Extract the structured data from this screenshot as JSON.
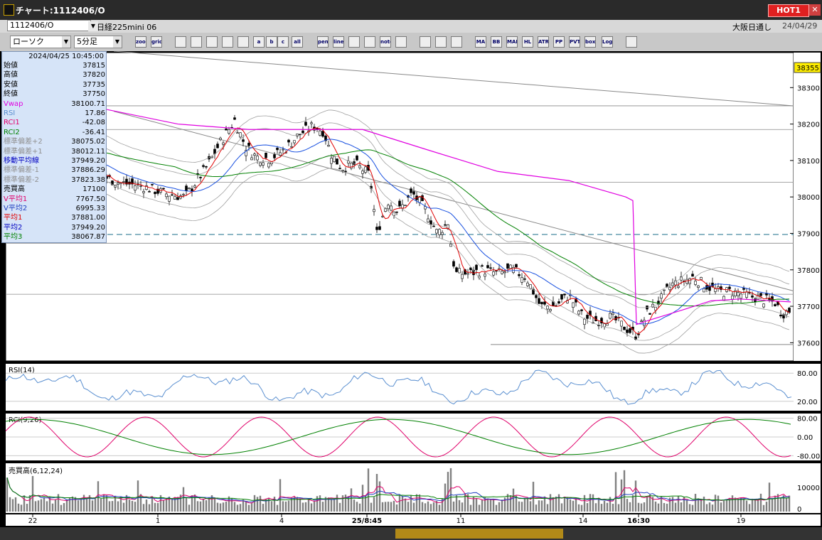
{
  "window": {
    "title": "チャート:1112406/O",
    "hot_label": "HOT1",
    "close_label": "✕"
  },
  "header": {
    "symbol": "1112406/O",
    "instrument": "日経225mini 06",
    "market": "大阪日通し",
    "date": "24/04/29"
  },
  "toolbar": {
    "chart_type": "ローソク",
    "interval": "5分足",
    "buttons": [
      "zoom",
      "grid",
      "indicator",
      "chart1",
      "chart2",
      "chart3",
      "chart4",
      "a",
      "b",
      "c",
      "all",
      "pen",
      "line",
      "cursor",
      "arrow",
      "note",
      "trash",
      "settings",
      "wrench",
      "palette",
      "MA",
      "BB",
      "MAE",
      "HL",
      "ATR",
      "PP",
      "PVT",
      "box",
      "Log",
      "export"
    ]
  },
  "info_panel": {
    "datetime": "2024/04/25   10:45:00",
    "rows": [
      {
        "label": "始値",
        "value": "37815",
        "color": "#000000"
      },
      {
        "label": "高値",
        "value": "37820",
        "color": "#000000"
      },
      {
        "label": "安値",
        "value": "37735",
        "color": "#000000"
      },
      {
        "label": "終値",
        "value": "37750",
        "color": "#000000"
      },
      {
        "label": "Vwap",
        "value": "38100.71",
        "color": "#e000e0"
      },
      {
        "label": "RSI",
        "value": "17.86",
        "color": "#5a8fd0"
      },
      {
        "label": "RCI1",
        "value": "-42.08",
        "color": "#e0006a"
      },
      {
        "label": "RCI2",
        "value": "-36.41",
        "color": "#008000"
      },
      {
        "label": "標準偏差+2",
        "value": "38075.02",
        "color": "#909090"
      },
      {
        "label": "標準偏差+1",
        "value": "38012.11",
        "color": "#909090"
      },
      {
        "label": "移動平均線",
        "value": "37949.20",
        "color": "#0000c0"
      },
      {
        "label": "標準偏差-1",
        "value": "37886.29",
        "color": "#909090"
      },
      {
        "label": "標準偏差-2",
        "value": "37823.38",
        "color": "#909090"
      },
      {
        "label": "売買高",
        "value": "17100",
        "color": "#000000"
      },
      {
        "label": "V平均1",
        "value": "7767.50",
        "color": "#e0006a"
      },
      {
        "label": "V平均2",
        "value": "6995.33",
        "color": "#2040c0"
      },
      {
        "label": "平均1",
        "value": "37881.00",
        "color": "#e00000"
      },
      {
        "label": "平均2",
        "value": "37949.20",
        "color": "#0000c0"
      },
      {
        "label": "平均3",
        "value": "38067.87",
        "color": "#008000"
      }
    ]
  },
  "chart_data": [
    {
      "type": "candlestick",
      "ylim": [
        37550,
        38400
      ],
      "y_ticks": [
        38300,
        38200,
        38100,
        38000,
        37900,
        37800,
        37700,
        37600
      ],
      "current_price": "38355",
      "x_ticks": [
        "22",
        "1",
        "4",
        "25/8:45",
        "11",
        "14",
        "16:30",
        "19"
      ],
      "horizontal_lines": [
        38250,
        38185,
        38040,
        37873,
        37733
      ],
      "dashed_level": 37897,
      "series": [
        {
          "name": "平均1",
          "color": "#e00000"
        },
        {
          "name": "平均2",
          "color": "#1850e0"
        },
        {
          "name": "平均3",
          "color": "#008000"
        },
        {
          "name": "Vwap",
          "color": "#e000e0"
        }
      ]
    },
    {
      "type": "line",
      "title": "RSI(14)",
      "ylim": [
        0,
        100
      ],
      "y_ticks": [
        "80.00",
        "20.00"
      ],
      "color": "#5a8fd0"
    },
    {
      "type": "line",
      "title": "RCI(9,26)",
      "ylim": [
        -100,
        100
      ],
      "y_ticks": [
        "80.00",
        "0.00",
        "-80.00"
      ],
      "colors": [
        "#e0006a",
        "#008000"
      ]
    },
    {
      "type": "bar",
      "title": "売買高(6,12,24)",
      "y_ticks": [
        "10000",
        "0"
      ]
    }
  ],
  "colors": {
    "accent": "#e02020",
    "panel": "#d6e4f8"
  }
}
